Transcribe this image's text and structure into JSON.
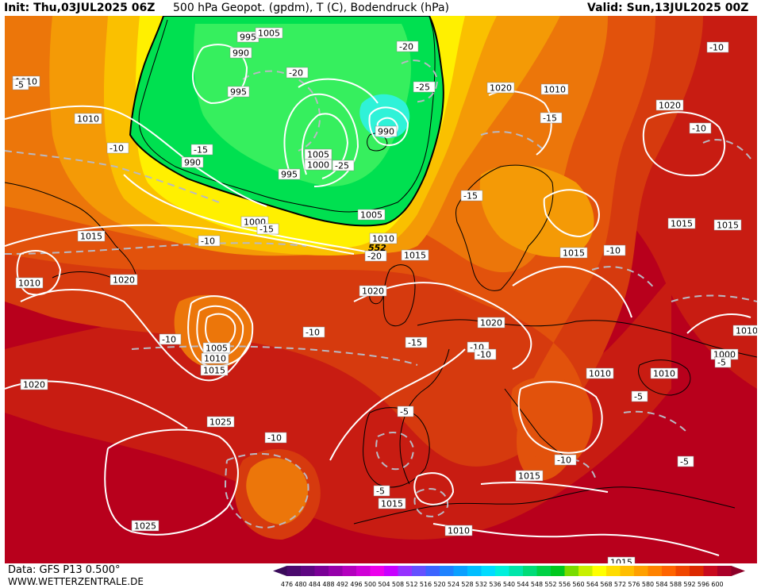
{
  "header": {
    "init": "Init: Thu,03JUL2025 06Z",
    "title": "500 hPa Geopot. (gpdm), T (C), Bodendruck (hPa)",
    "valid": "Valid: Sun,13JUL2025 00Z"
  },
  "footer": {
    "source": "Data: GFS P13 0.500°",
    "site": "WWW.WETTERZENTRALE.DE"
  },
  "colors": {
    "deep_red": "#b8001c",
    "dark_red": "#c81c12",
    "red": "#d63a0e",
    "red_orange": "#e2520c",
    "orange": "#ec760a",
    "light_orange": "#f49a06",
    "amber": "#fac000",
    "yellow": "#fff000",
    "green": "#00e050",
    "light_green": "#36ef5e",
    "cyan": "#2ff2d8",
    "land_line": "#000000",
    "isobar": "#ffffff",
    "isotherm": "#b9b9c3"
  },
  "map": {
    "isobar_labels": [
      "995",
      "990",
      "995",
      "1010",
      "1020",
      "1010",
      "1020",
      "990",
      "1005",
      "1000",
      "995",
      "990",
      "1005",
      "1010",
      "1015",
      "1015",
      "1015",
      "1015",
      "1015",
      "1010",
      "1020",
      "1000",
      "1010",
      "1020",
      "1005",
      "1010",
      "1015",
      "1020",
      "1020",
      "1025",
      "1010",
      "1015",
      "1015",
      "1010",
      "1025",
      "1015",
      "1010",
      "1010",
      "1000",
      "1005"
    ],
    "isotherm_labels": [
      "-20",
      "-20",
      "-25",
      "-15",
      "-10",
      "-15",
      "-25",
      "-15",
      "-10",
      "-10",
      "-15",
      "-10",
      "-20",
      "-10",
      "-10",
      "-5",
      "-15",
      "-10",
      "-10",
      "-10",
      "-5",
      "-10",
      "-5",
      "-5",
      "-10",
      "-5",
      "-5"
    ],
    "height_label": "552"
  },
  "scale": {
    "labels": [
      "476",
      "480",
      "484",
      "488",
      "492",
      "496",
      "500",
      "504",
      "508",
      "512",
      "516",
      "520",
      "524",
      "528",
      "532",
      "536",
      "540",
      "544",
      "548",
      "552",
      "556",
      "560",
      "564",
      "568",
      "572",
      "576",
      "580",
      "584",
      "588",
      "592",
      "596",
      "600"
    ],
    "colors": [
      "#3a0a5a",
      "#4b0a6e",
      "#5e0682",
      "#7a0096",
      "#9600aa",
      "#b400be",
      "#d000d6",
      "#ec00ec",
      "#c800ff",
      "#9632ff",
      "#6450ff",
      "#3c64ff",
      "#1e82ff",
      "#0aa0ff",
      "#00beff",
      "#00dcff",
      "#00f0dc",
      "#00e6aa",
      "#00dc78",
      "#00d246",
      "#00c81e",
      "#78dc00",
      "#c8f000",
      "#ffff00",
      "#ffdc00",
      "#ffbe00",
      "#ffa000",
      "#ff8200",
      "#ff6400",
      "#f04600",
      "#dc2800",
      "#c80a1e",
      "#aa0028",
      "#8c0028"
    ]
  }
}
